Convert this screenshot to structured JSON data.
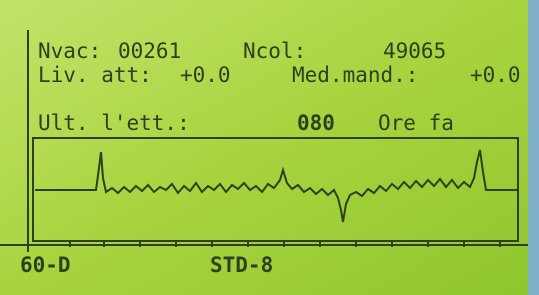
{
  "screen": {
    "line1": {
      "label1": "Nvac:",
      "value1": "00261",
      "label2": "Ncol:",
      "value2": "49065"
    },
    "line2": {
      "label1": "Liv. att:",
      "value1": "+0.0",
      "label2": "Med.mand.:",
      "value2": "+0.0"
    },
    "line3": {
      "label1": "Ult. l'ett.:",
      "value1": "080",
      "label2": "Ore fa"
    },
    "footer": {
      "left": "60-D",
      "center": "STD-8"
    }
  }
}
